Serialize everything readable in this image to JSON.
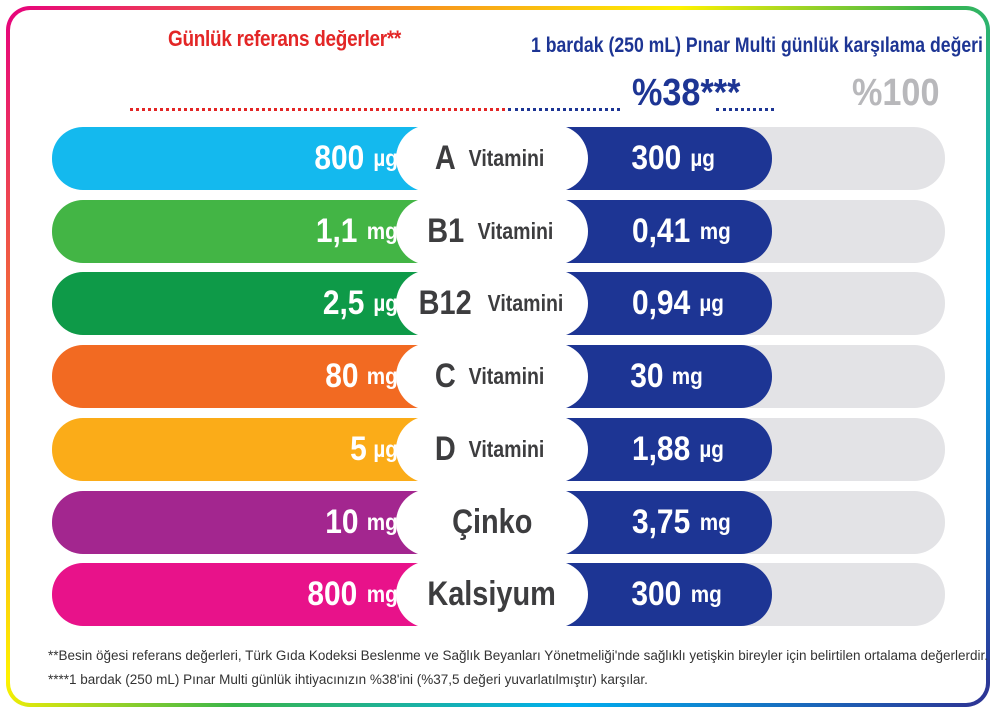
{
  "header": {
    "left_title": "Günlük referans değerler**",
    "right_title": "1 bardak (250 mL) Pınar Multi  günlük karşılama değeri",
    "percent_value": "%38***",
    "percent_full": "%100"
  },
  "colors": {
    "blue": "#1d3594",
    "grey": "#e3e3e6",
    "header_red": "#e32626"
  },
  "rows": [
    {
      "color": "#14b9ee",
      "name": "A",
      "suffix": "Vitamini",
      "ref_num": "800",
      "ref_unit": "µg",
      "val_num": "300",
      "val_unit": "µg"
    },
    {
      "color": "#43b545",
      "name": "B1",
      "suffix": "Vitamini",
      "ref_num": "1,1",
      "ref_unit": "mg",
      "val_num": "0,41",
      "val_unit": "mg"
    },
    {
      "color": "#0e9a48",
      "name": "B12",
      "suffix": "Vitamini",
      "ref_num": "2,5",
      "ref_unit": "µg",
      "val_num": "0,94",
      "val_unit": "µg"
    },
    {
      "color": "#f26a22",
      "name": "C",
      "suffix": "Vitamini",
      "ref_num": "80",
      "ref_unit": "mg",
      "val_num": "30",
      "val_unit": "mg"
    },
    {
      "color": "#fbac18",
      "name": "D",
      "suffix": "Vitamini",
      "ref_num": "5",
      "ref_unit": "µg",
      "val_num": "1,88",
      "val_unit": "µg"
    },
    {
      "color": "#a3268f",
      "name": "Çinko",
      "suffix": "",
      "ref_num": "10",
      "ref_unit": "mg",
      "val_num": "3,75",
      "val_unit": "mg"
    },
    {
      "color": "#e8128a",
      "name": "Kalsiyum",
      "suffix": "",
      "ref_num": "800",
      "ref_unit": "mg",
      "val_num": "300",
      "val_unit": "mg"
    }
  ],
  "footnotes": [
    "**Besin öğesi referans değerleri, Türk Gıda Kodeksi Beslenme ve Sağlık Beyanları Yönetmeliği'nde sağlıklı yetişkin bireyler için belirtilen ortalama değerlerdir.",
    "****1 bardak (250 mL) Pınar Multi günlük ihtiyacınızın %38'ini (%37,5 değeri yuvarlatılmıştır) karşılar."
  ]
}
